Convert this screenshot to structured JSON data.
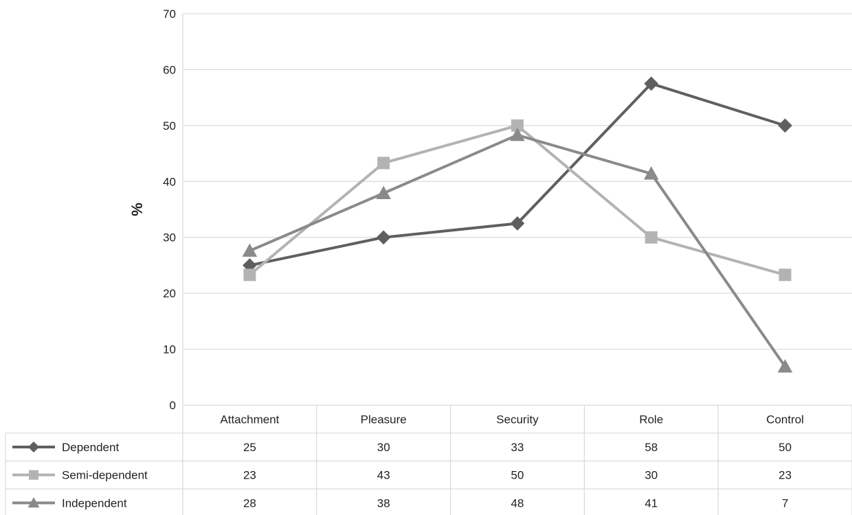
{
  "chart_data": {
    "type": "line",
    "ylabel": "%",
    "xlabel": "",
    "ylim": [
      0,
      70
    ],
    "yticks": [
      0,
      10,
      20,
      30,
      40,
      50,
      60,
      70
    ],
    "grid": true,
    "legend": "data-table",
    "categories": [
      "Attachment",
      "Pleasure",
      "Security",
      "Role",
      "Control"
    ],
    "series": [
      {
        "name": "Dependent",
        "marker": "diamond",
        "color": "#5f5f5f",
        "values": [
          25,
          30,
          32.5,
          57.5,
          50
        ],
        "table_values": [
          "25",
          "30",
          "33",
          "58",
          "50"
        ]
      },
      {
        "name": "Semi-dependent",
        "marker": "square",
        "color": "#b3b3b3",
        "values": [
          23.3,
          43.3,
          50,
          30,
          23.3
        ],
        "table_values": [
          "23",
          "43",
          "50",
          "30",
          "23"
        ]
      },
      {
        "name": "Independent",
        "marker": "triangle",
        "color": "#8a8a8a",
        "values": [
          27.6,
          37.9,
          48.3,
          41.4,
          6.9
        ],
        "table_values": [
          "28",
          "38",
          "48",
          "41",
          "7"
        ]
      }
    ]
  }
}
